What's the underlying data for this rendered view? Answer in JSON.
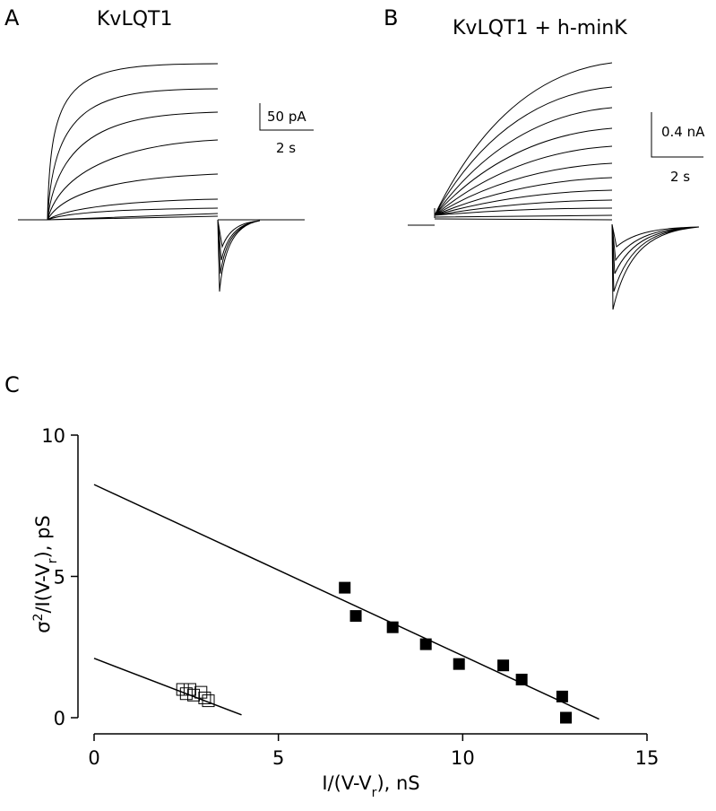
{
  "panels": [
    {
      "label": "A",
      "title": "KvLQT1",
      "scale_bars": [
        "50 pA",
        "2 s"
      ]
    },
    {
      "label": "B",
      "title": "KvLQT1 + h-minK",
      "scale_bars": [
        "0.4 nA",
        "2 s"
      ]
    }
  ],
  "chart_data": {
    "type": "scatter",
    "panel_label": "C",
    "xlabel": [
      "I/(V-V",
      "r",
      "),  nS"
    ],
    "ylabel": [
      "σ",
      "2",
      "/I(V-V",
      "r",
      "),  pS"
    ],
    "xlim": [
      0,
      15
    ],
    "xticks": [
      0,
      5,
      10,
      15
    ],
    "ylim": [
      0,
      10
    ],
    "yticks": [
      0,
      5,
      10
    ],
    "series": [
      {
        "type": "scatter",
        "marker": "filled-square",
        "color": "#000000",
        "x": [
          6.8,
          7.1,
          8.1,
          9.0,
          9.9,
          11.1,
          11.6,
          12.7,
          12.8
        ],
        "values": [
          4.6,
          3.6,
          3.2,
          2.6,
          1.9,
          1.85,
          1.35,
          0.75,
          0.0
        ]
      },
      {
        "type": "scatter",
        "marker": "open-square",
        "color": "#000000",
        "x": [
          2.4,
          2.5,
          2.6,
          2.7,
          2.9,
          3.0,
          3.1
        ],
        "values": [
          1.0,
          0.85,
          1.0,
          0.8,
          0.9,
          0.7,
          0.6
        ]
      },
      {
        "type": "line",
        "color": "#000000",
        "x": [
          0,
          13.7
        ],
        "values": [
          8.25,
          -0.05
        ]
      },
      {
        "type": "line",
        "color": "#000000",
        "x": [
          0,
          4
        ],
        "values": [
          2.1,
          0.1
        ]
      }
    ]
  }
}
